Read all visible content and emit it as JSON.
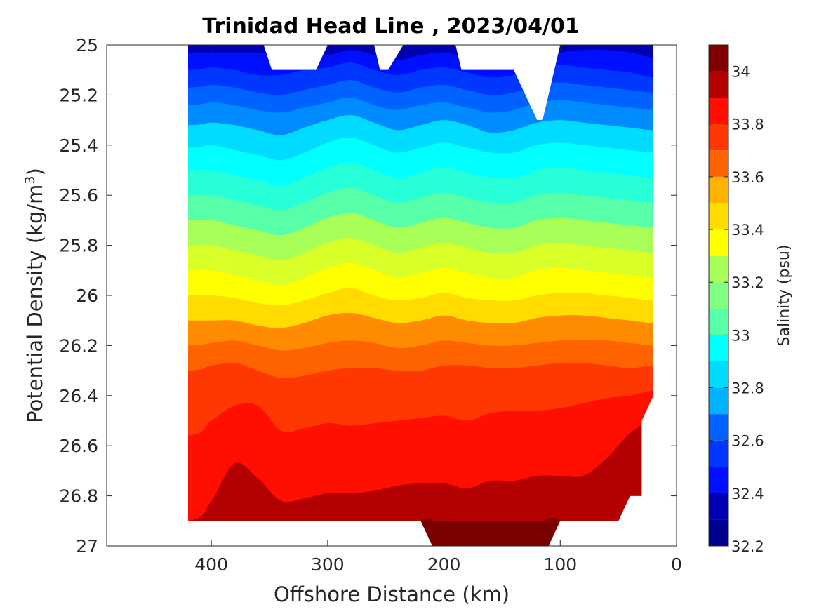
{
  "chart_data": {
    "type": "contour",
    "title": "Trinidad Head Line , 2023/04/01",
    "xlabel": "Offshore Distance (km)",
    "ylabel": "Potential Density (kg/m",
    "ylabel_sup": "3",
    "ylabel_end": ")",
    "xlim": [
      490,
      0
    ],
    "ylim": [
      25,
      27
    ],
    "y_reversed": true,
    "x_ticks": [
      "400",
      "300",
      "200",
      "100",
      "0"
    ],
    "y_ticks": [
      "25",
      "25.2",
      "25.4",
      "25.6",
      "25.8",
      "26",
      "26.2",
      "26.4",
      "26.6",
      "26.8",
      "27"
    ],
    "data_x_range": [
      420,
      20
    ],
    "colorbar": {
      "label": "Salinity (psu)",
      "range": [
        32.2,
        34.1
      ],
      "ticks": [
        "32.2",
        "32.4",
        "32.6",
        "32.8",
        "33",
        "33.2",
        "33.4",
        "33.6",
        "33.8",
        "34"
      ],
      "levels": [
        32.2,
        32.3,
        32.4,
        32.5,
        32.6,
        32.7,
        32.8,
        32.9,
        33.0,
        33.1,
        33.2,
        33.3,
        33.4,
        33.5,
        33.6,
        33.7,
        33.8,
        33.9,
        34.0,
        34.1
      ],
      "colors": [
        "#00008f",
        "#0000b3",
        "#0000df",
        "#000fff",
        "#0037ff",
        "#0063ff",
        "#008bff",
        "#00b3ff",
        "#00dbff",
        "#00ffff",
        "#27ffd8",
        "#57ffa8",
        "#80ff80",
        "#a8ff57",
        "#d8ff27",
        "#ffff00",
        "#ffdb00",
        "#ffb300",
        "#ff8b00",
        "#ff6300",
        "#ff3700",
        "#ff0f00",
        "#df0000",
        "#b30000",
        "#800000"
      ]
    },
    "stations_x": [
      420,
      400,
      380,
      360,
      340,
      320,
      300,
      280,
      260,
      240,
      220,
      200,
      180,
      160,
      140,
      120,
      100,
      80,
      60,
      40,
      20
    ],
    "isohalines": [
      {
        "level": 32.4,
        "y": [
          25.03,
          25.03,
          25.03,
          25.03,
          25.03,
          25.03,
          25.04,
          25.02,
          25.04,
          25.06,
          25.04,
          25.03,
          25.05,
          25.07,
          25.07,
          25.06,
          25.03,
          25.02,
          25.02,
          25.03,
          25.05
        ]
      },
      {
        "level": 32.5,
        "y": [
          25.1,
          25.09,
          25.1,
          25.12,
          25.12,
          25.1,
          25.09,
          25.07,
          25.1,
          25.12,
          25.1,
          25.09,
          25.11,
          25.13,
          25.12,
          25.09,
          25.08,
          25.09,
          25.1,
          25.11,
          25.13
        ]
      },
      {
        "level": 32.6,
        "y": [
          25.17,
          25.16,
          25.17,
          25.19,
          25.2,
          25.18,
          25.16,
          25.14,
          25.17,
          25.19,
          25.17,
          25.16,
          25.18,
          25.2,
          25.19,
          25.16,
          25.15,
          25.16,
          25.17,
          25.18,
          25.19
        ]
      },
      {
        "level": 32.7,
        "y": [
          25.24,
          25.23,
          25.24,
          25.26,
          25.27,
          25.25,
          25.23,
          25.21,
          25.24,
          25.26,
          25.24,
          25.23,
          25.25,
          25.27,
          25.26,
          25.23,
          25.22,
          25.23,
          25.24,
          25.25,
          25.26
        ]
      },
      {
        "level": 32.8,
        "y": [
          25.32,
          25.31,
          25.32,
          25.34,
          25.36,
          25.33,
          25.3,
          25.28,
          25.31,
          25.34,
          25.32,
          25.3,
          25.32,
          25.35,
          25.34,
          25.31,
          25.3,
          25.31,
          25.32,
          25.33,
          25.34
        ]
      },
      {
        "level": 32.9,
        "y": [
          25.41,
          25.4,
          25.42,
          25.44,
          25.46,
          25.43,
          25.39,
          25.37,
          25.4,
          25.43,
          25.41,
          25.39,
          25.41,
          25.43,
          25.43,
          25.4,
          25.39,
          25.4,
          25.41,
          25.42,
          25.43
        ]
      },
      {
        "level": 33.0,
        "y": [
          25.5,
          25.5,
          25.52,
          25.54,
          25.56,
          25.53,
          25.49,
          25.47,
          25.5,
          25.53,
          25.51,
          25.49,
          25.51,
          25.53,
          25.53,
          25.5,
          25.49,
          25.5,
          25.51,
          25.52,
          25.53
        ]
      },
      {
        "level": 33.1,
        "y": [
          25.6,
          25.6,
          25.62,
          25.64,
          25.66,
          25.63,
          25.59,
          25.57,
          25.6,
          25.63,
          25.61,
          25.59,
          25.61,
          25.63,
          25.63,
          25.6,
          25.59,
          25.6,
          25.61,
          25.62,
          25.63
        ]
      },
      {
        "level": 33.2,
        "y": [
          25.7,
          25.7,
          25.72,
          25.74,
          25.76,
          25.73,
          25.69,
          25.67,
          25.7,
          25.73,
          25.71,
          25.69,
          25.71,
          25.73,
          25.73,
          25.7,
          25.69,
          25.7,
          25.71,
          25.72,
          25.73
        ]
      },
      {
        "level": 33.3,
        "y": [
          25.8,
          25.8,
          25.82,
          25.84,
          25.86,
          25.83,
          25.79,
          25.77,
          25.8,
          25.83,
          25.81,
          25.79,
          25.81,
          25.83,
          25.83,
          25.8,
          25.79,
          25.8,
          25.81,
          25.82,
          25.83
        ]
      },
      {
        "level": 33.4,
        "y": [
          25.9,
          25.9,
          25.92,
          25.94,
          25.96,
          25.93,
          25.89,
          25.87,
          25.9,
          25.93,
          25.91,
          25.89,
          25.91,
          25.93,
          25.93,
          25.9,
          25.89,
          25.9,
          25.91,
          25.92,
          25.93
        ]
      },
      {
        "level": 33.5,
        "y": [
          26.0,
          26.0,
          26.01,
          26.03,
          26.04,
          26.02,
          25.99,
          25.97,
          26.0,
          26.02,
          26.01,
          25.99,
          26.01,
          26.02,
          26.02,
          26.0,
          25.99,
          25.99,
          26.0,
          26.01,
          26.02
        ]
      },
      {
        "level": 33.6,
        "y": [
          26.1,
          26.1,
          26.1,
          26.12,
          26.13,
          26.11,
          26.08,
          26.07,
          26.09,
          26.11,
          26.1,
          26.08,
          26.1,
          26.11,
          26.11,
          26.09,
          26.08,
          26.08,
          26.09,
          26.1,
          26.11
        ]
      },
      {
        "level": 33.7,
        "y": [
          26.2,
          26.19,
          26.18,
          26.2,
          26.22,
          26.21,
          26.19,
          26.18,
          26.19,
          26.21,
          26.2,
          26.18,
          26.19,
          26.2,
          26.2,
          26.19,
          26.18,
          26.18,
          26.18,
          26.19,
          26.2
        ]
      },
      {
        "level": 33.8,
        "y": [
          26.3,
          26.28,
          26.27,
          26.3,
          26.33,
          26.32,
          26.3,
          26.29,
          26.29,
          26.3,
          26.3,
          26.28,
          26.28,
          26.29,
          26.29,
          26.28,
          26.27,
          26.27,
          26.28,
          26.29,
          26.28
        ]
      },
      {
        "level": 33.9,
        "y": [
          26.56,
          26.5,
          26.44,
          26.44,
          26.54,
          26.53,
          26.51,
          26.52,
          26.51,
          26.5,
          26.49,
          26.48,
          26.5,
          26.47,
          26.46,
          26.46,
          26.45,
          26.43,
          26.41,
          26.4,
          26.38
        ]
      },
      {
        "level": 34.0,
        "y": [
          26.9,
          26.82,
          26.67,
          26.73,
          26.82,
          26.81,
          26.79,
          26.79,
          26.78,
          26.76,
          26.75,
          26.75,
          26.77,
          26.74,
          26.74,
          26.72,
          26.72,
          26.72,
          26.65,
          26.55,
          26.5
        ]
      },
      {
        "level": 34.1,
        "y": [
          27.1,
          27.1,
          27.1,
          27.1,
          27.1,
          27.1,
          27.1,
          27.1,
          27.1,
          27.1,
          26.9,
          26.92,
          26.92,
          26.91,
          26.91,
          26.91,
          26.9,
          27.1,
          27.1,
          27.1,
          27.1
        ]
      }
    ],
    "data_top": {
      "x": [
        420,
        355,
        348,
        310,
        300,
        290,
        275,
        260,
        255,
        248,
        235,
        225,
        200,
        190,
        185,
        175,
        150,
        140,
        120,
        115,
        105,
        100,
        20
      ],
      "y": [
        25,
        25,
        25.1,
        25.1,
        25,
        25,
        25,
        25,
        25.1,
        25.1,
        25,
        25,
        25,
        25,
        25.1,
        25.1,
        25.1,
        25.1,
        25.3,
        25.3,
        25.1,
        25,
        25
      ]
    },
    "data_bottom": {
      "x": [
        420,
        410,
        400,
        380,
        360,
        340,
        320,
        300,
        280,
        260,
        240,
        220,
        200,
        180,
        160,
        140,
        120,
        100,
        80,
        60,
        50,
        40,
        30,
        30,
        20
      ],
      "y": [
        26.9,
        26.9,
        26.9,
        26.9,
        26.9,
        26.9,
        26.9,
        26.9,
        26.9,
        26.9,
        26.9,
        26.9,
        26.9,
        26.9,
        26.9,
        26.9,
        26.9,
        26.9,
        26.9,
        26.9,
        26.9,
        26.8,
        26.8,
        26.5,
        26.4
      ]
    },
    "deep_patch": {
      "x": [
        220,
        210,
        200,
        120,
        110,
        100,
        95,
        115,
        210
      ],
      "y": [
        26.9,
        27.0,
        27.0,
        27.0,
        27.0,
        26.9,
        26.9,
        26.9,
        26.9
      ]
    }
  }
}
